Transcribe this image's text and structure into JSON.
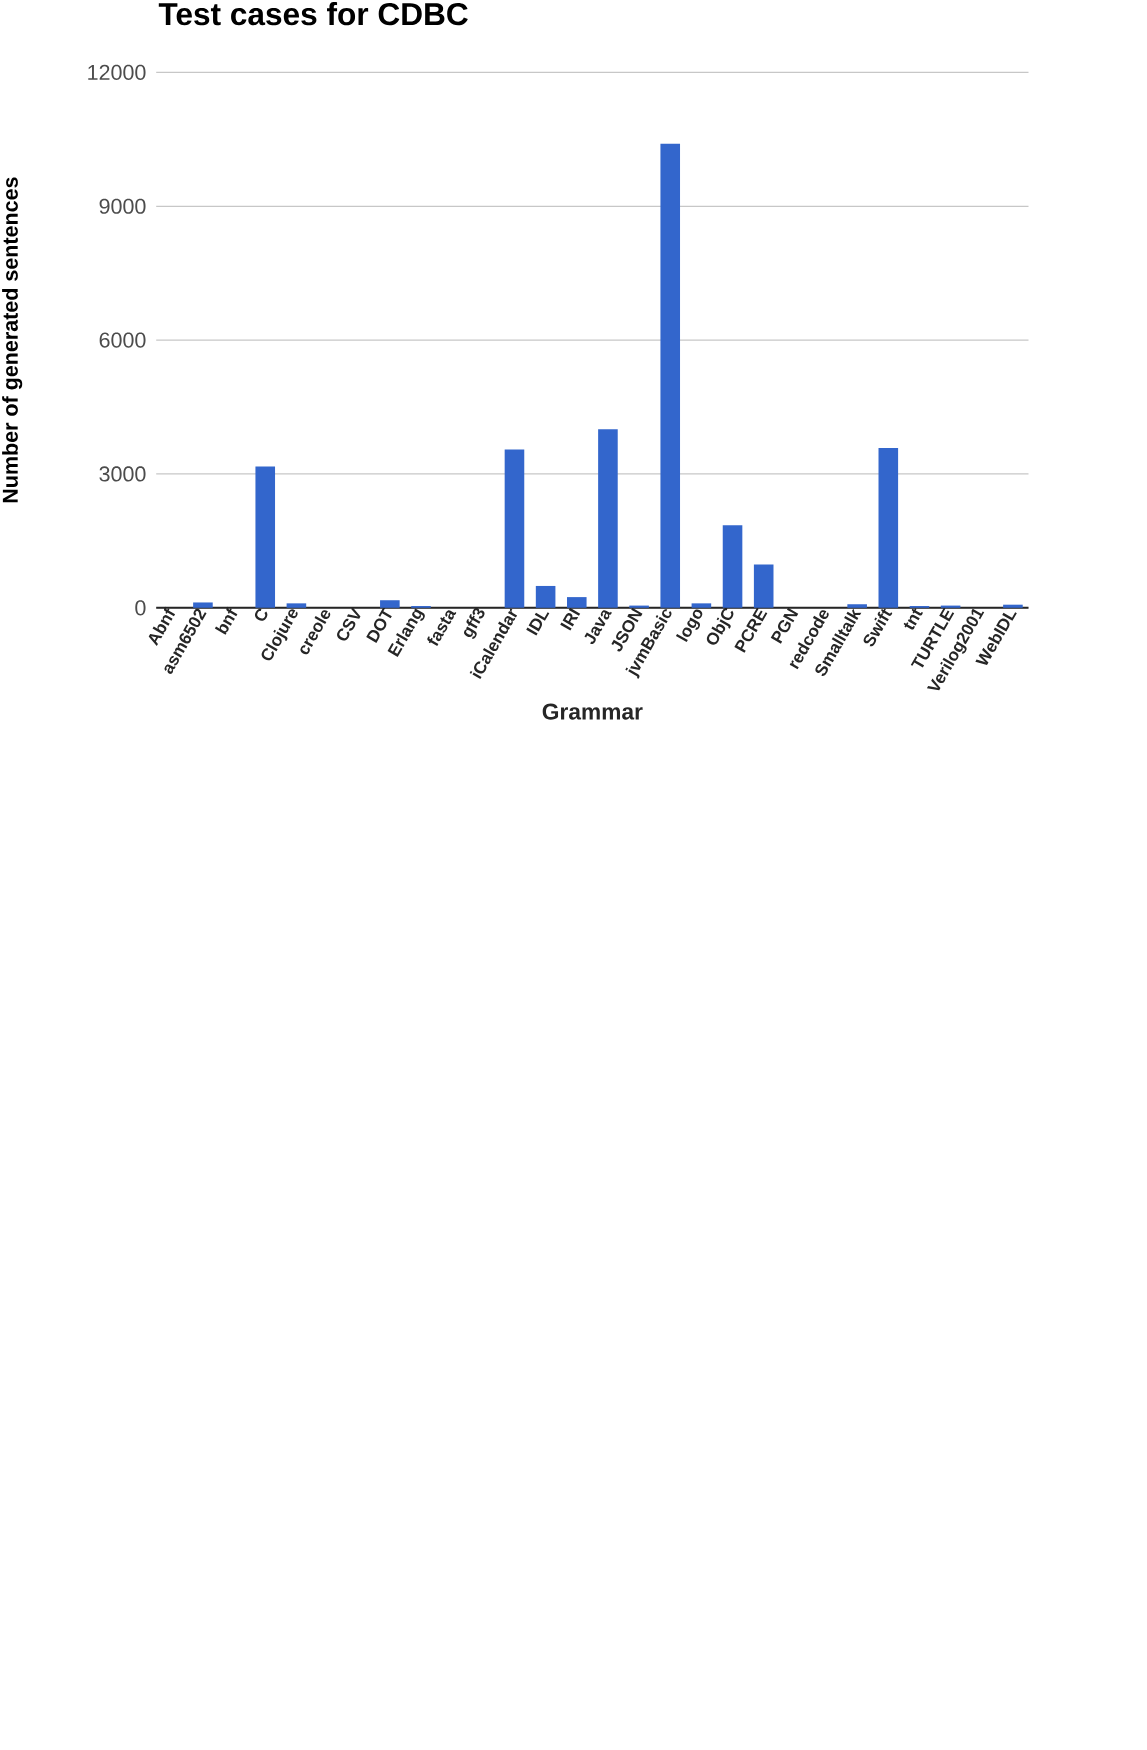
{
  "chart_data": {
    "type": "bar",
    "title": "Test cases for CDBC",
    "xlabel": "Grammar",
    "ylabel": "Number of generated sentences",
    "categories": [
      "Abnf",
      "asm6502",
      "bnf",
      "C",
      "Clojure",
      "creole",
      "CSV",
      "DOT",
      "Erlang",
      "fasta",
      "gff3",
      "iCalendar",
      "IDL",
      "IRI",
      "Java",
      "JSON",
      "jvmBasic",
      "logo",
      "ObjC",
      "PCRE",
      "PGN",
      "redcode",
      "Smalltalk",
      "Swift",
      "tnt",
      "TURTLE",
      "Verilog2001",
      "WebIDL"
    ],
    "values": [
      0,
      120,
      0,
      3170,
      100,
      0,
      0,
      170,
      40,
      0,
      0,
      3550,
      490,
      240,
      4000,
      50,
      10400,
      100,
      1850,
      970,
      0,
      0,
      80,
      3580,
      40,
      50,
      0,
      70
    ],
    "color": "#3366cc",
    "ylim": [
      0,
      12000
    ],
    "yticks": [
      0,
      3000,
      6000,
      9000,
      12000
    ],
    "grid": "y"
  }
}
